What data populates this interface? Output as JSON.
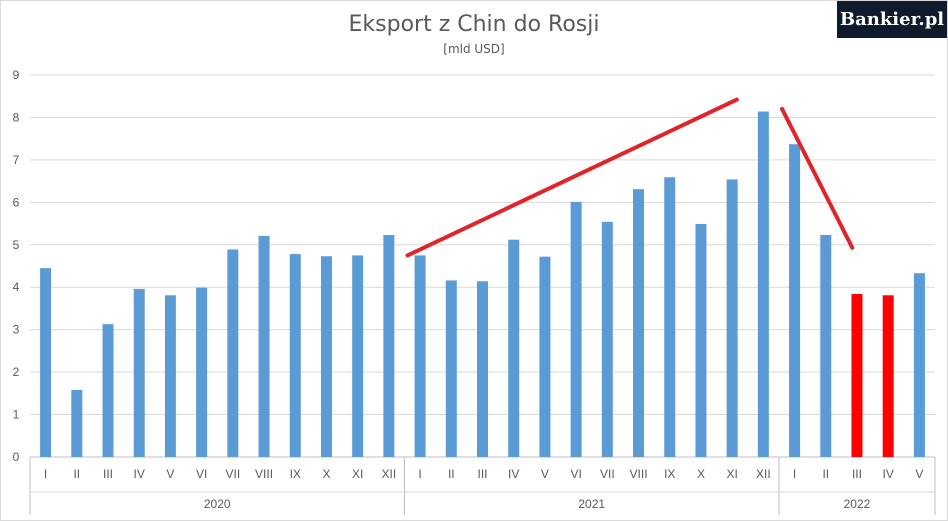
{
  "logo": "Bankier.pl",
  "chart_data": {
    "type": "bar",
    "title": "Eksport z Chin do Rosji",
    "subtitle": "[mld USD]",
    "ylim": [
      0,
      9
    ],
    "yticks": [
      0,
      1,
      2,
      3,
      4,
      5,
      6,
      7,
      8,
      9
    ],
    "grid": true,
    "bar_color": "#5b9bd5",
    "highlight_color": "#ff0000",
    "groups": [
      {
        "year": "2020",
        "months": [
          "I",
          "II",
          "III",
          "IV",
          "V",
          "VI",
          "VII",
          "VIII",
          "IX",
          "X",
          "XI",
          "XII"
        ],
        "values": [
          4.45,
          1.58,
          3.13,
          3.96,
          3.81,
          3.99,
          4.89,
          5.21,
          4.78,
          4.73,
          4.75,
          5.23
        ]
      },
      {
        "year": "2021",
        "months": [
          "I",
          "II",
          "III",
          "IV",
          "V",
          "VI",
          "VII",
          "VIII",
          "IX",
          "X",
          "XI",
          "XII"
        ],
        "values": [
          4.75,
          4.16,
          4.14,
          5.12,
          4.72,
          6.01,
          5.54,
          6.31,
          6.59,
          5.49,
          6.54,
          8.14
        ]
      },
      {
        "year": "2022",
        "months": [
          "I",
          "II",
          "III",
          "IV",
          "V"
        ],
        "values": [
          7.37,
          5.23,
          3.84,
          3.81,
          4.33
        ],
        "highlighted": [
          "III",
          "IV"
        ]
      }
    ],
    "trend_lines": [
      {
        "from": [
          "2020",
          "XII"
        ],
        "to": [
          "2021",
          "XII"
        ],
        "y_from": 4.75,
        "y_to": 8.42,
        "color": "#e0242b"
      },
      {
        "from": [
          "2021",
          "XII"
        ],
        "to": [
          "2022",
          "III"
        ],
        "y_from": 8.2,
        "y_to": 4.93,
        "color": "#e0242b"
      }
    ]
  }
}
